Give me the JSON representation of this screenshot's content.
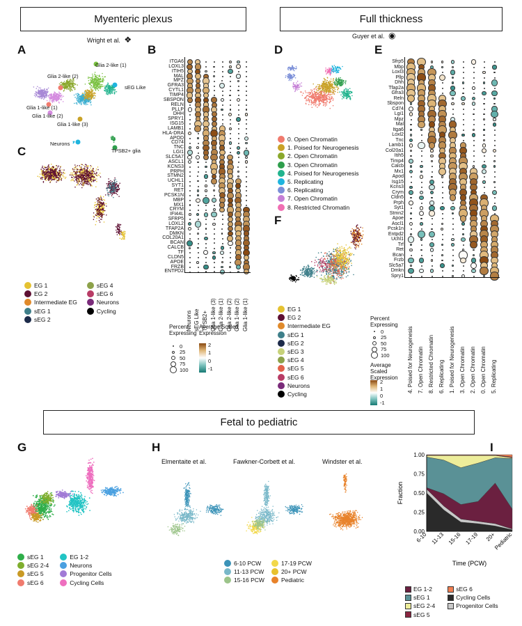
{
  "sections": {
    "top_left": "Myenteric plexus",
    "top_right": "Full thickness",
    "bottom": "Fetal to pediatric"
  },
  "citations": {
    "wright": "Wright et al.",
    "guyer": "Guyer et al.",
    "elmentaite": "Elmentaite et al.",
    "fawkner": "Fawkner-Corbett et al.",
    "windster": "Windster et al."
  },
  "panel_letters": [
    "A",
    "B",
    "C",
    "D",
    "E",
    "F",
    "G",
    "H",
    "I"
  ],
  "panelA": {
    "labels": [
      "Glia 2-like (1)",
      "Glia 2-like (2)",
      "sEG Like",
      "Glia 1-like (1)",
      "Glia 1-like (2)",
      "Glia 1-like (3)",
      "Neurons",
      "TPSB2+ glia"
    ]
  },
  "panelC": {
    "legend": [
      {
        "label": "EG 1",
        "color": "#e5c231"
      },
      {
        "label": "EG 2",
        "color": "#5e1033"
      },
      {
        "label": "Intermediate EG",
        "color": "#e08a2b"
      },
      {
        "label": "sEG 1",
        "color": "#3e7f8a"
      },
      {
        "label": "sEG 2",
        "color": "#1d2b4a"
      },
      {
        "label": "sEG 4",
        "color": "#8da24a"
      },
      {
        "label": "sEG 6",
        "color": "#b83c66"
      },
      {
        "label": "Neurons",
        "color": "#7a2b7a"
      },
      {
        "label": "Cycling",
        "color": "#000000"
      }
    ]
  },
  "panelB": {
    "genes": [
      "ITGA6",
      "LOXL3",
      "ITIH5",
      "MAL",
      "MPZ",
      "GFRA3",
      "CYTL1",
      "TIMP4",
      "SBSPON",
      "RELN",
      "PLLP",
      "DHH",
      "SPRY1",
      "ISG15",
      "LAMB1",
      "HLA-DRA",
      "APOD",
      "CD74",
      "TNC",
      "LGI1",
      "SLC5A7",
      "ASCL1",
      "KCNS3",
      "PRPH",
      "STMN2",
      "UCHL1",
      "SYT1",
      "RET",
      "PCSK1N",
      "MBP",
      "MX1",
      "CRYM",
      "IFI44L",
      "SFRP5",
      "LOXL2",
      "TFAP2A",
      "DMKN",
      "COL20A1",
      "BCAN",
      "CALCB",
      "TF",
      "CLDN5",
      "APOE",
      "FRZB",
      "ENTPD2"
    ],
    "clusters": [
      "Neurons",
      "sEG Like",
      "TPSB2+",
      "Glia 1-like (3)",
      "Glia 2-like (1)",
      "Glia 2-like (2)",
      "Glia 1-like (2)",
      "Glia 1-like (1)"
    ],
    "legend": {
      "pct_title": "Percent Expressing",
      "pct_values": [
        "0",
        "25",
        "50",
        "75",
        "100"
      ],
      "expr_title": "Average Scaled Expression",
      "expr_ticks": [
        "2",
        "1",
        "0",
        "-1"
      ]
    }
  },
  "panelD": {
    "legend": [
      {
        "label": "0. Open Chromatin",
        "color": "#f07b6e"
      },
      {
        "label": "1. Poised for Neurogenesis",
        "color": "#c9a227"
      },
      {
        "label": "2. Open Chromatin",
        "color": "#8aa82c"
      },
      {
        "label": "3. Open Chromatin",
        "color": "#2e9e4c"
      },
      {
        "label": "4. Poised for Neurogenesis",
        "color": "#22b48e"
      },
      {
        "label": "5. Replicating",
        "color": "#1fb4de"
      },
      {
        "label": "6. Replicating",
        "color": "#7b8fd8"
      },
      {
        "label": "7. Open Chromatin",
        "color": "#c57fd6"
      },
      {
        "label": "8. Restricted Chromatin",
        "color": "#f06fb3"
      }
    ]
  },
  "panelE": {
    "genes": [
      "Sfrp5",
      "Mbp",
      "Loxl3",
      "Pllp",
      "Dhh",
      "Tfap2a",
      "Gfra3",
      "Reln",
      "Sbspon",
      "Cd74",
      "Lgi1",
      "Mpz",
      "Mal",
      "Itga6",
      "Loxl2",
      "Tnc",
      "Lamb1",
      "Col20a1",
      "Itih5",
      "Timp4",
      "Calcb",
      "Mx1",
      "Apod",
      "Isg15",
      "Kcns3",
      "Crym",
      "Cldn5",
      "Prph",
      "Syt1",
      "Stmn2",
      "Apoe",
      "Ascl1",
      "Pcsk1n",
      "Entpd2",
      "Uchl1",
      "Trf",
      "Ret",
      "Bcan",
      "Frzb",
      "Slc5a7",
      "Dmkn",
      "Spry1"
    ],
    "clusters": [
      "4. Poised for Neurogenesis",
      "7. Open Chromatin",
      "8. Restricted Chromatin",
      "6. Replicating",
      "1. Poised for Neurogenesis",
      "3. Open Chromatin",
      "2. Open Chromatin",
      "0. Open Chromatin",
      "5. Replicating"
    ]
  },
  "panelF": {
    "legend": [
      {
        "label": "EG 1",
        "color": "#e5c231"
      },
      {
        "label": "EG 2",
        "color": "#5e1033"
      },
      {
        "label": "Intermediate EG",
        "color": "#e08a2b"
      },
      {
        "label": "sEG 1",
        "color": "#3e7f8a"
      },
      {
        "label": "sEG 2",
        "color": "#1d2b4a"
      },
      {
        "label": "sEG 3",
        "color": "#c7d27a"
      },
      {
        "label": "sEG 4",
        "color": "#8da24a"
      },
      {
        "label": "sEG 5",
        "color": "#e3624a"
      },
      {
        "label": "sEG 6",
        "color": "#b83c66"
      },
      {
        "label": "Neurons",
        "color": "#7a2b7a"
      },
      {
        "label": "Cycling",
        "color": "#000000"
      }
    ],
    "expr_legend": {
      "pct_title": "Percent Expressing",
      "pct_values": [
        "0",
        "25",
        "50",
        "75",
        "100"
      ],
      "expr_title": "Average Scaled Expression",
      "expr_ticks": [
        "2",
        "1",
        "0",
        "-1"
      ]
    }
  },
  "panelG": {
    "legend_col1": [
      {
        "label": "sEG 1",
        "color": "#2fae4a"
      },
      {
        "label": "sEG 2-4",
        "color": "#7fae2e"
      },
      {
        "label": "sEG 5",
        "color": "#c99a25"
      },
      {
        "label": "sEG 6",
        "color": "#f07b6e"
      }
    ],
    "legend_col2": [
      {
        "label": "EG 1-2",
        "color": "#22c4c4"
      },
      {
        "label": "Neurons",
        "color": "#4aa0e0"
      },
      {
        "label": "Progenitor Cells",
        "color": "#a17ad6"
      },
      {
        "label": "Cycling Cells",
        "color": "#ee6fbf"
      }
    ]
  },
  "panelH": {
    "legend_col1": [
      {
        "label": "6-10 PCW",
        "color": "#3b93b8"
      },
      {
        "label": "11-13 PCW",
        "color": "#79b8c9"
      },
      {
        "label": "15-16 PCW",
        "color": "#9cc48a"
      }
    ],
    "legend_col2": [
      {
        "label": "17-19 PCW",
        "color": "#f2d84a"
      },
      {
        "label": "20+ PCW",
        "color": "#e8c12e"
      },
      {
        "label": "Pediatric",
        "color": "#e8822a"
      }
    ]
  },
  "chart_data": {
    "type": "area",
    "title": "",
    "xlabel": "Time (PCW)",
    "ylabel": "Fraction",
    "categories": [
      "6-10",
      "11-13",
      "15-16",
      "17-19",
      "20+",
      "Pediatric"
    ],
    "ylim": [
      0,
      1
    ],
    "yticks": [
      "0.00",
      "0.25",
      "0.50",
      "0.75",
      "1.00"
    ],
    "stack_order_bottom_to_top": [
      "Cycling Cells",
      "Progenitor Cells",
      "EG 1-2",
      "sEG 1",
      "sEG 2-4",
      "sEG 5",
      "sEG 6"
    ],
    "series": [
      {
        "name": "Cycling Cells",
        "color": "#2a2a2a",
        "values": [
          0.5,
          0.28,
          0.12,
          0.1,
          0.07,
          0.02
        ]
      },
      {
        "name": "Progenitor Cells",
        "color": "#c9c9c9",
        "values": [
          0.05,
          0.05,
          0.04,
          0.03,
          0.03,
          0.01
        ]
      },
      {
        "name": "EG 1-2",
        "color": "#6b2040",
        "values": [
          0.02,
          0.16,
          0.19,
          0.26,
          0.53,
          0.26
        ]
      },
      {
        "name": "sEG 1",
        "color": "#5a9196",
        "values": [
          0.4,
          0.44,
          0.48,
          0.5,
          0.33,
          0.66
        ]
      },
      {
        "name": "sEG 2-4",
        "color": "#eded9a",
        "values": [
          0.02,
          0.06,
          0.16,
          0.1,
          0.03,
          0.01
        ]
      },
      {
        "name": "sEG 5",
        "color": "#8a2540",
        "values": [
          0.005,
          0.005,
          0.005,
          0.005,
          0.005,
          0.01
        ]
      },
      {
        "name": "sEG 6",
        "color": "#f07f52",
        "values": [
          0.005,
          0.005,
          0.005,
          0.005,
          0.005,
          0.03
        ]
      }
    ],
    "legend": {
      "col1": [
        {
          "label": "EG 1-2",
          "color": "#6b2040"
        },
        {
          "label": "sEG 1",
          "color": "#5a9196"
        },
        {
          "label": "sEG 2-4",
          "color": "#eded9a"
        },
        {
          "label": "sEG 5",
          "color": "#8a2540"
        }
      ],
      "col2": [
        {
          "label": "sEG 6",
          "color": "#f07f52"
        },
        {
          "label": "Cycling Cells",
          "color": "#2a2a2a"
        },
        {
          "label": "Progenitor Cells",
          "color": "#c9c9c9"
        }
      ]
    }
  }
}
